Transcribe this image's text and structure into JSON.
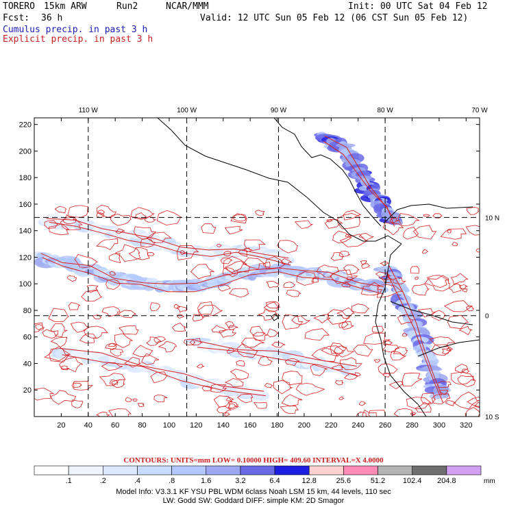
{
  "header": {
    "model": "TORERO",
    "resolution": "15km ARW",
    "run": "Run2",
    "org": "NCAR/MMM",
    "init": "Init: 00 UTC Sat 04 Feb 12",
    "fcst_label": "Fcst:",
    "fcst_value": "36 h",
    "valid": "Valid: 12 UTC Sun 05 Feb 12 (06 CST Sun 05 Feb 12)",
    "legend_cumulus": "Cumulus precip. in past 3 h",
    "legend_explicit": "Explicit precip. in past 3 h"
  },
  "chart_data": {
    "type": "heatmap",
    "title": "Cumulus precip. in past 3 h / Explicit precip. in past 3 h",
    "x_grid": {
      "range": [
        0,
        330
      ],
      "ticks": [
        20,
        40,
        60,
        80,
        100,
        120,
        140,
        160,
        180,
        200,
        220,
        240,
        260,
        280,
        300,
        320
      ]
    },
    "y_grid": {
      "range": [
        0,
        225
      ],
      "ticks": [
        20,
        40,
        60,
        80,
        100,
        120,
        140,
        160,
        180,
        200,
        220
      ]
    },
    "longitude_labels": [
      "110 W",
      "100 W",
      "90 W",
      "80 W",
      "70 W"
    ],
    "longitude_grid_x": [
      40,
      113,
      181,
      260,
      330
    ],
    "latitude_labels": [
      "10 N",
      "0",
      "10 S"
    ],
    "latitude_grid_y": [
      150,
      76,
      0
    ],
    "contours": {
      "text": "CONTOURS:  UNITS=mm  LOW= 0.10000      HIGH=  409.60      INTERVAL=X  4.0000",
      "units": "mm",
      "low": 0.1,
      "high": 409.6,
      "interval_factor": 4.0
    },
    "colorbar": {
      "levels": [
        ".1",
        ".2",
        ".4",
        ".8",
        "1.6",
        "3.2",
        "6.4",
        "12.8",
        "25.6",
        "51.2",
        "102.4",
        "204.8"
      ],
      "unit": "mm",
      "colors": [
        "#ffffff",
        "#eef4ff",
        "#dbe8ff",
        "#c8dcff",
        "#b4c8ff",
        "#9ca8f0",
        "#6a6ae6",
        "#1e1ee0",
        "#ffd2d2",
        "#ff8cb4",
        "#b4b4b4",
        "#6e6e6e",
        "#d2a0f0"
      ]
    },
    "precip_bands": [
      {
        "name": "itcz-main",
        "points": [
          [
            5,
            120
          ],
          [
            20,
            116
          ],
          [
            40,
            110
          ],
          [
            60,
            104
          ],
          [
            80,
            100
          ],
          [
            100,
            98
          ],
          [
            120,
            98
          ],
          [
            140,
            104
          ],
          [
            160,
            108
          ],
          [
            180,
            110
          ],
          [
            200,
            108
          ],
          [
            220,
            106
          ],
          [
            240,
            100
          ],
          [
            258,
            96
          ]
        ],
        "intensity": 3
      },
      {
        "name": "itcz-north",
        "points": [
          [
            10,
            148
          ],
          [
            30,
            146
          ],
          [
            50,
            140
          ],
          [
            70,
            136
          ],
          [
            90,
            132
          ],
          [
            110,
            126
          ],
          [
            130,
            124
          ],
          [
            150,
            126
          ],
          [
            170,
            122
          ],
          [
            190,
            118
          ]
        ],
        "intensity": 1
      },
      {
        "name": "caribbean",
        "points": [
          [
            215,
            210
          ],
          [
            230,
            200
          ],
          [
            240,
            185
          ],
          [
            250,
            170
          ],
          [
            260,
            158
          ],
          [
            268,
            145
          ]
        ],
        "intensity": 5
      },
      {
        "name": "south-1",
        "points": [
          [
            20,
            48
          ],
          [
            50,
            44
          ],
          [
            80,
            38
          ],
          [
            110,
            30
          ],
          [
            140,
            22
          ],
          [
            170,
            16
          ]
        ],
        "intensity": 1
      },
      {
        "name": "south-2",
        "points": [
          [
            120,
            56
          ],
          [
            150,
            50
          ],
          [
            180,
            46
          ],
          [
            210,
            40
          ],
          [
            240,
            34
          ]
        ],
        "intensity": 1
      },
      {
        "name": "andes",
        "points": [
          [
            262,
            110
          ],
          [
            272,
            90
          ],
          [
            282,
            70
          ],
          [
            288,
            50
          ],
          [
            296,
            30
          ],
          [
            302,
            14
          ]
        ],
        "intensity": 4
      }
    ],
    "red_contour_seed": 12345
  },
  "footer": {
    "line1": "Model Info: V3.3.1    KF    YSU PBL   WDM 6class   Noah LSM   15 km,   44 levels,   110 sec",
    "line2": "LW: Godd SW: Goddard DIFF: simple KM: 2D Smagor"
  }
}
